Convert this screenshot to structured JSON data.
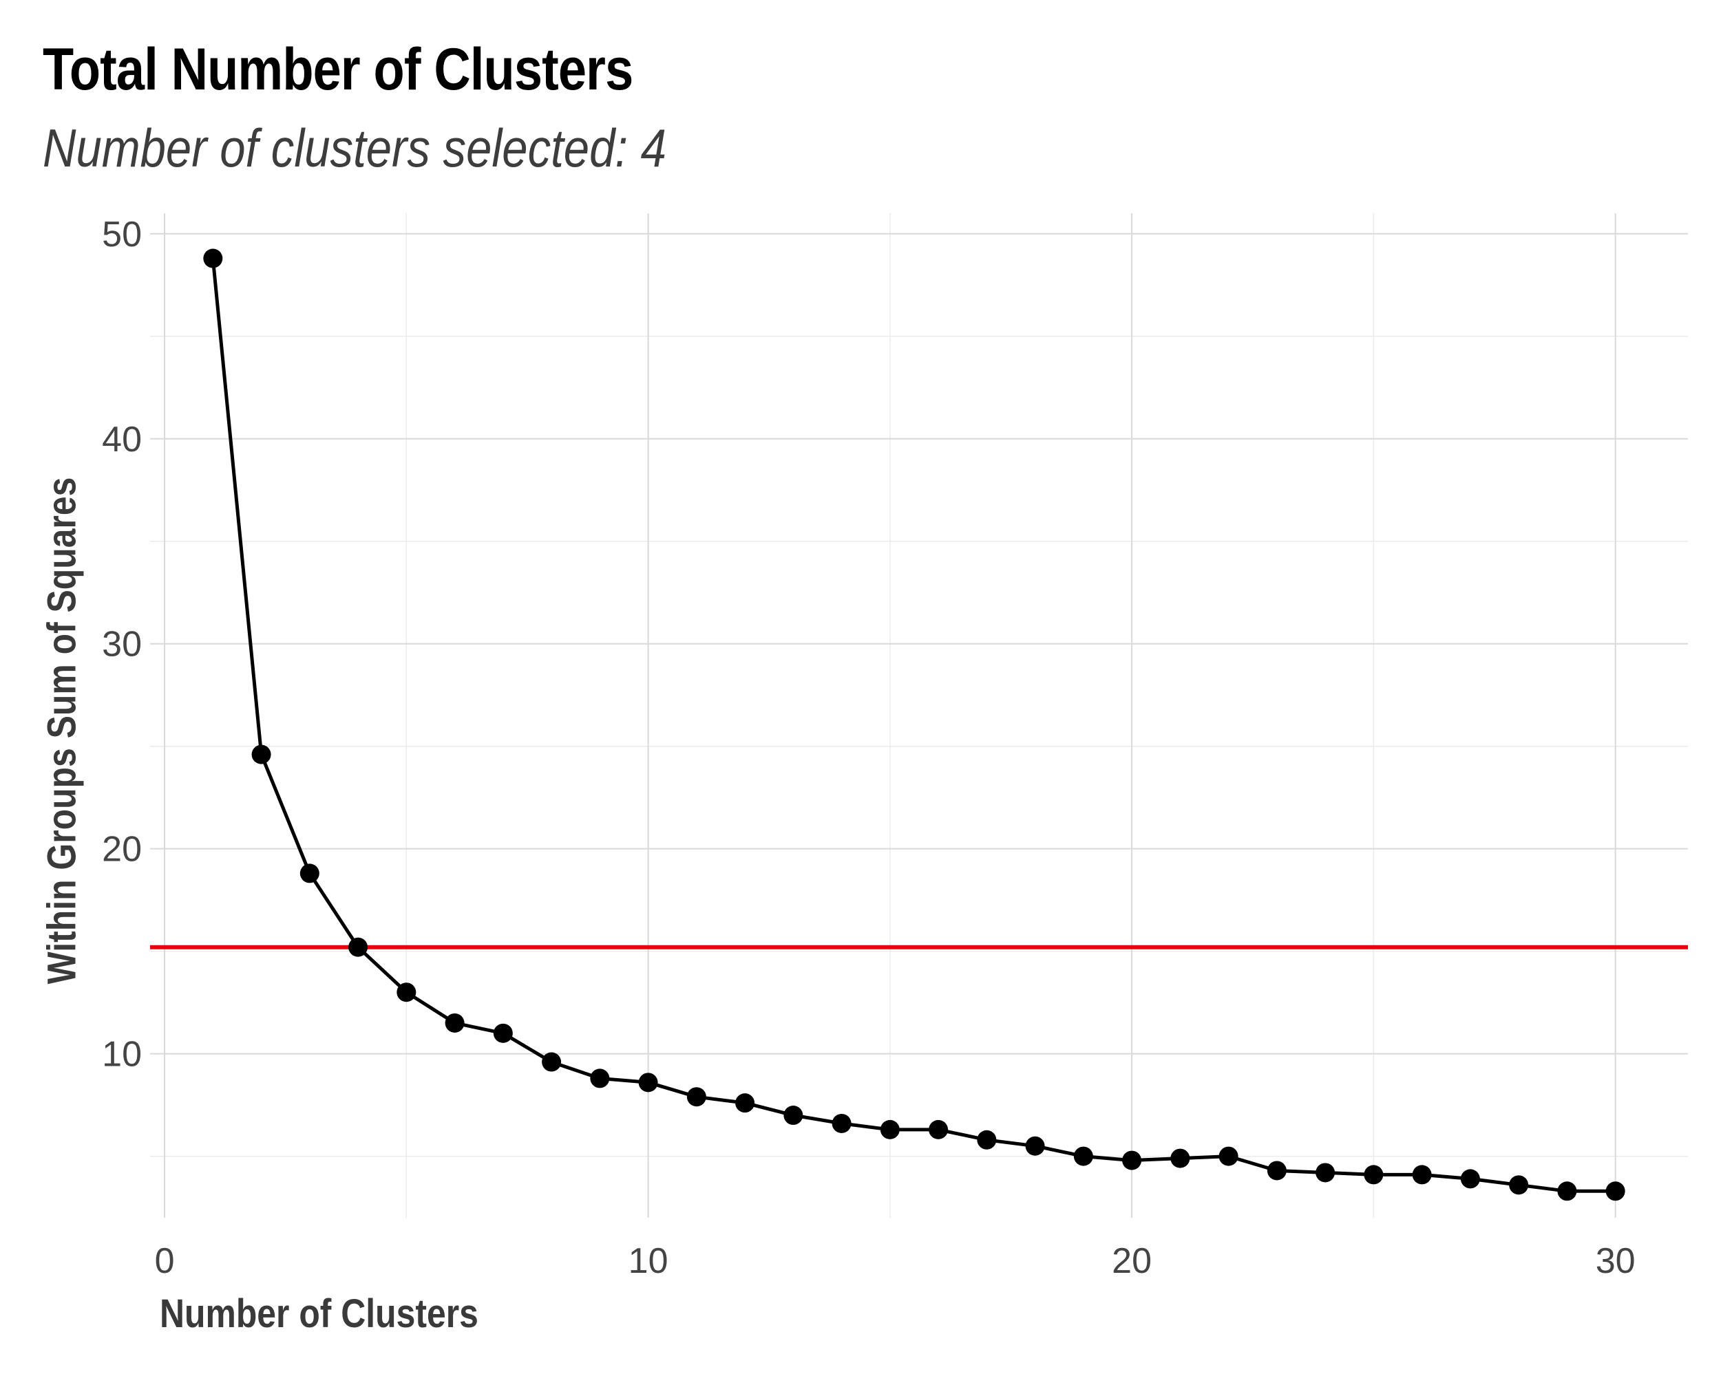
{
  "chart_data": {
    "type": "line",
    "title": "Total Number of Clusters",
    "subtitle": "Number of clusters selected: 4",
    "xlabel": "Number of Clusters",
    "ylabel": "Within Groups Sum of Squares",
    "xlim": [
      -0.3,
      31.5
    ],
    "ylim": [
      2,
      51
    ],
    "x_ticks": [
      0,
      10,
      20,
      30
    ],
    "y_ticks": [
      10,
      20,
      30,
      40,
      50
    ],
    "grid": true,
    "series": [
      {
        "color": "#000000",
        "x": [
          1,
          2,
          3,
          4,
          5,
          6,
          7,
          8,
          9,
          10,
          11,
          12,
          13,
          14,
          15,
          16,
          17,
          18,
          19,
          20,
          21,
          22,
          23,
          24,
          25,
          26,
          27,
          28,
          29,
          30
        ],
        "values": [
          48.8,
          24.6,
          18.8,
          15.2,
          13.0,
          11.5,
          11.0,
          9.6,
          8.8,
          8.6,
          7.9,
          7.6,
          7.0,
          6.6,
          6.3,
          6.3,
          5.8,
          5.5,
          5.0,
          4.8,
          4.9,
          5.0,
          4.3,
          4.2,
          4.1,
          4.1,
          3.9,
          3.6,
          3.3,
          3.3
        ]
      }
    ],
    "hline": {
      "y": 15.2,
      "color": "#e8000b"
    }
  }
}
